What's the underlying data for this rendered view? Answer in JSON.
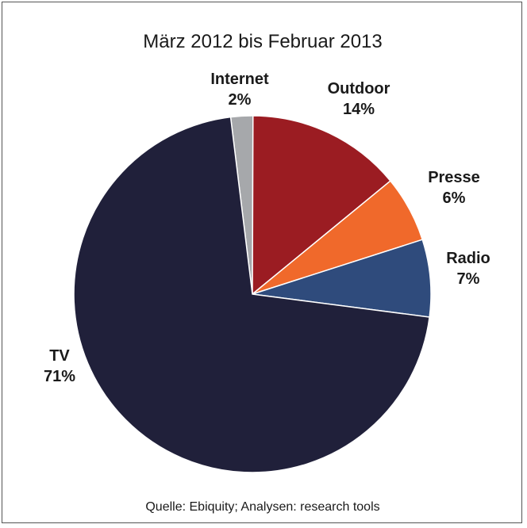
{
  "chart_data": {
    "type": "pie",
    "title": "März 2012 bis Februar 2013",
    "source": "Quelle: Ebiquity; Analysen: research tools",
    "slices": [
      {
        "name": "Internet",
        "value": 2,
        "value_label": "2%",
        "color": "#a6a8ab"
      },
      {
        "name": "Outdoor",
        "value": 14,
        "value_label": "14%",
        "color": "#9b1c22"
      },
      {
        "name": "Presse",
        "value": 6,
        "value_label": "6%",
        "color": "#f0692b"
      },
      {
        "name": "Radio",
        "value": 7,
        "value_label": "7%",
        "color": "#2f4b7c"
      },
      {
        "name": "TV",
        "value": 71,
        "value_label": "71%",
        "color": "#20203a"
      }
    ]
  }
}
